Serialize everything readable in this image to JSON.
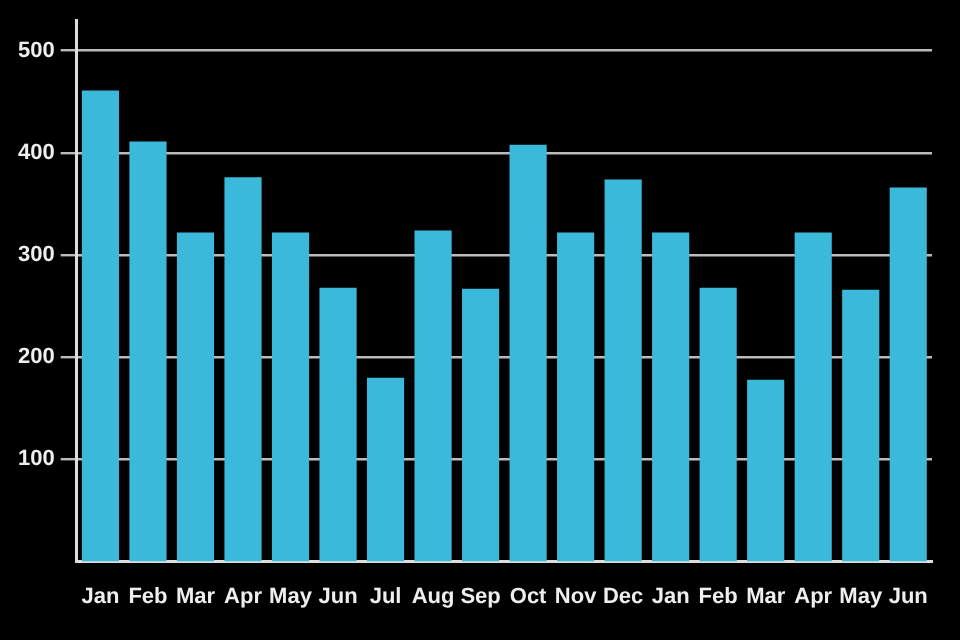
{
  "chart_data": {
    "type": "bar",
    "categories": [
      "Jan",
      "Feb",
      "Mar",
      "Apr",
      "May",
      "Jun",
      "Jul",
      "Aug",
      "Sep",
      "Oct",
      "Nov",
      "Dec",
      "Jan",
      "Feb",
      "Mar",
      "Apr",
      "May",
      "Jun"
    ],
    "values": [
      461,
      411,
      322,
      376,
      322,
      268,
      180,
      324,
      267,
      408,
      322,
      374,
      322,
      268,
      178,
      322,
      266,
      366
    ],
    "color": "#3bb9da",
    "ylim": [
      0,
      530
    ],
    "yticks": [
      100,
      200,
      300,
      400,
      500
    ],
    "grid": "y"
  }
}
